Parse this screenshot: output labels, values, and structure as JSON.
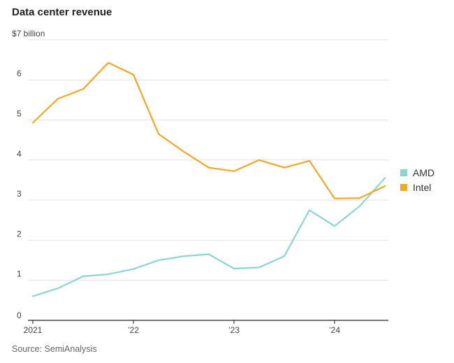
{
  "chart_data": {
    "type": "line",
    "title": "Data center revenue",
    "ylabel": "$7 billion",
    "source": "Source: SemiAnalysis",
    "ylim": [
      0,
      7
    ],
    "yticks": [
      0,
      1,
      2,
      3,
      4,
      5,
      6,
      7
    ],
    "ytick_labels": [
      "0",
      "1",
      "2",
      "3",
      "4",
      "5",
      "6",
      "$7 billion"
    ],
    "x": [
      "Q1 2021",
      "Q2 2021",
      "Q3 2021",
      "Q4 2021",
      "Q1 2022",
      "Q2 2022",
      "Q3 2022",
      "Q4 2022",
      "Q1 2023",
      "Q2 2023",
      "Q3 2023",
      "Q4 2023",
      "Q1 2024",
      "Q2 2024",
      "Q3 2024"
    ],
    "xticks": [
      {
        "index": 0,
        "label": "2021"
      },
      {
        "index": 4,
        "label": "’22"
      },
      {
        "index": 8,
        "label": "’23"
      },
      {
        "index": 12,
        "label": "’24"
      }
    ],
    "series": [
      {
        "name": "AMD",
        "color": "#8dd3d6",
        "values": [
          0.6,
          0.8,
          1.1,
          1.15,
          1.28,
          1.5,
          1.6,
          1.65,
          1.29,
          1.32,
          1.6,
          2.75,
          2.35,
          2.85,
          3.55
        ]
      },
      {
        "name": "Intel",
        "color": "#f5a623",
        "values": [
          4.93,
          5.53,
          5.77,
          6.43,
          6.13,
          4.65,
          4.21,
          3.81,
          3.72,
          4.0,
          3.81,
          3.98,
          3.04,
          3.05,
          3.35
        ]
      }
    ],
    "legend": "right"
  }
}
